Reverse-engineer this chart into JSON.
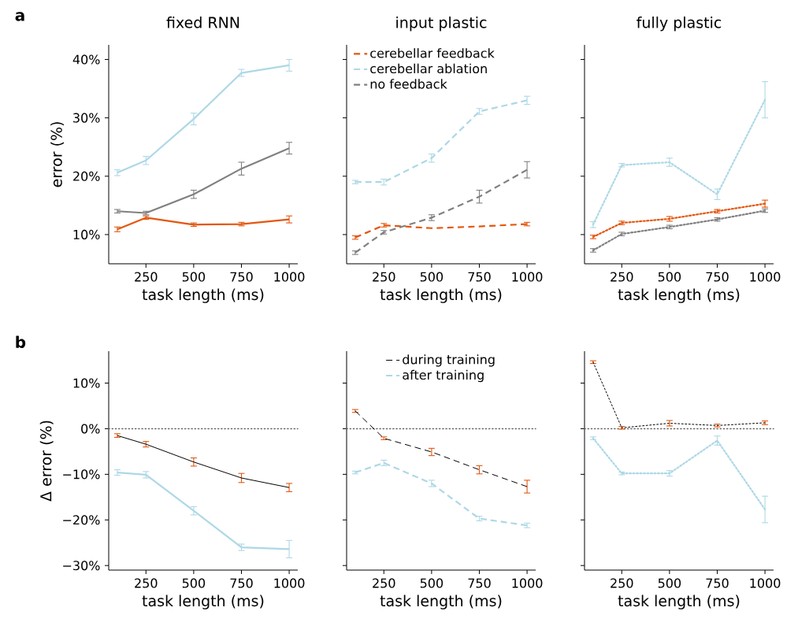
{
  "chart_data": [
    {
      "type": "line",
      "title": "fixed RNN",
      "xlabel": "task length (ms)",
      "ylabel": "error (%)",
      "annotations": [
        "a"
      ],
      "x": [
        100,
        250,
        500,
        750,
        1000
      ],
      "xlim": [
        55,
        1045
      ],
      "xticks": [
        250,
        500,
        750,
        1000
      ],
      "ylim": [
        5,
        42.5
      ],
      "yticks": [
        {
          "value": 10,
          "label": "10%"
        },
        {
          "value": 20,
          "label": "20%"
        },
        {
          "value": 30,
          "label": "30%"
        },
        {
          "value": 40,
          "label": "40%"
        }
      ],
      "line_style": "solid",
      "legend": false,
      "series": [
        {
          "color": "#e4570f",
          "values": [
            10.9,
            12.9,
            11.7,
            11.8,
            12.6
          ],
          "errors": [
            0.4,
            0.3,
            0.3,
            0.3,
            0.6
          ]
        },
        {
          "color": "#add8e6",
          "values": [
            20.6,
            22.7,
            29.8,
            37.7,
            39.0
          ],
          "errors": [
            0.5,
            0.7,
            1.0,
            0.6,
            1.0
          ]
        },
        {
          "color": "#808080",
          "values": [
            14.0,
            13.7,
            16.9,
            21.3,
            24.8
          ],
          "errors": [
            0.3,
            0.3,
            0.7,
            1.1,
            1.0
          ]
        }
      ]
    },
    {
      "type": "line",
      "title": "input plastic",
      "xlabel": "task length (ms)",
      "x": [
        100,
        250,
        500,
        750,
        1000
      ],
      "xlim": [
        55,
        1045
      ],
      "xticks": [
        250,
        500,
        750,
        1000
      ],
      "ylim": [
        5,
        42.5
      ],
      "yticks": [
        {
          "value": 10,
          "label": null
        },
        {
          "value": 20,
          "label": null
        },
        {
          "value": 30,
          "label": null
        },
        {
          "value": 40,
          "label": null
        }
      ],
      "tick_labels": "x",
      "line_style": "dashed",
      "legend": "top left",
      "series": [
        {
          "name": "cerebellar feedback",
          "color": "#e4570f",
          "values": [
            9.5,
            11.6,
            11.1,
            11.4,
            11.8
          ],
          "errors": [
            0.3,
            0.3,
            null,
            null,
            0.3
          ]
        },
        {
          "name": "cerebellar ablation",
          "color": "#add8e6",
          "values": [
            19.0,
            19.0,
            23.1,
            31.1,
            33.0
          ],
          "errors": [
            0.3,
            0.5,
            0.7,
            0.5,
            0.7
          ]
        },
        {
          "name": "no feedback",
          "color": "#808080",
          "values": [
            6.9,
            10.4,
            12.9,
            16.5,
            21.1
          ],
          "errors": [
            0.3,
            0.3,
            0.5,
            1.1,
            1.4
          ]
        }
      ]
    },
    {
      "type": "line",
      "title": "fully plastic",
      "xlabel": "task length (ms)",
      "x": [
        100,
        250,
        500,
        750,
        1000
      ],
      "xlim": [
        55,
        1045
      ],
      "xticks": [
        250,
        500,
        750,
        1000
      ],
      "ylim": [
        5,
        42.5
      ],
      "yticks": [
        {
          "value": 10,
          "label": null
        },
        {
          "value": 20,
          "label": null
        },
        {
          "value": 30,
          "label": null
        },
        {
          "value": 40,
          "label": null
        }
      ],
      "tick_labels": "x",
      "line_style": "dotted",
      "legend": false,
      "series": [
        {
          "color": "#e4570f",
          "values": [
            9.6,
            12.0,
            12.7,
            14.0,
            15.3
          ],
          "errors": [
            0.3,
            0.3,
            0.4,
            0.3,
            0.6
          ]
        },
        {
          "color": "#add8e6",
          "values": [
            11.7,
            21.9,
            22.4,
            16.9,
            33.1
          ],
          "errors": [
            0.5,
            0.3,
            0.7,
            0.9,
            3.1
          ]
        },
        {
          "color": "#808080",
          "values": [
            7.3,
            10.1,
            11.3,
            12.6,
            14.1
          ],
          "errors": [
            0.3,
            0.3,
            0.3,
            0.3,
            0.3
          ]
        }
      ]
    },
    {
      "type": "line",
      "xlabel": "task length (ms)",
      "ylabel": "Δ error (%)",
      "annotations": [
        "b"
      ],
      "x": [
        100,
        250,
        500,
        750,
        1000
      ],
      "xlim": [
        55,
        1045
      ],
      "xticks": [
        250,
        500,
        750,
        1000
      ],
      "ylim": [
        -31,
        17
      ],
      "yticks": [
        {
          "value": -30,
          "label": "−30%"
        },
        {
          "value": -20,
          "label": "−20%"
        },
        {
          "value": -10,
          "label": "−10%"
        },
        {
          "value": 0,
          "label": "0%"
        },
        {
          "value": 10,
          "label": "10%"
        }
      ],
      "line_style": "solid",
      "legend": false,
      "ref_lines": [
        {
          "axis": "y",
          "value": 0,
          "color": "#666666",
          "line_style": "dotted"
        }
      ],
      "series": [
        {
          "color": "#000000",
          "colors": [
            "#e4570f",
            "#e4570f",
            "#e4570f",
            "#e4570f",
            "#e4570f"
          ],
          "values": [
            -1.5,
            -3.4,
            -7.3,
            -10.8,
            -12.9
          ],
          "errors": [
            0.4,
            0.6,
            0.9,
            1.0,
            0.9
          ]
        },
        {
          "color": "#add8e6",
          "values": [
            -9.6,
            -10.1,
            -18.0,
            -26.0,
            -26.4
          ],
          "errors": [
            0.6,
            0.7,
            0.9,
            0.7,
            1.9
          ]
        }
      ]
    },
    {
      "type": "line",
      "xlabel": "task length (ms)",
      "x": [
        100,
        250,
        500,
        750,
        1000
      ],
      "xlim": [
        55,
        1045
      ],
      "xticks": [
        250,
        500,
        750,
        1000
      ],
      "ylim": [
        -31,
        17
      ],
      "yticks": [
        {
          "value": -30,
          "label": null
        },
        {
          "value": -20,
          "label": null
        },
        {
          "value": -10,
          "label": null
        },
        {
          "value": 0,
          "label": null
        },
        {
          "value": 10,
          "label": null
        }
      ],
      "tick_labels": "x",
      "line_style": "dashed",
      "legend": "top",
      "ref_lines": [
        {
          "axis": "y",
          "value": 0,
          "color": "#666666",
          "line_style": "dotted"
        }
      ],
      "series": [
        {
          "name": "during training",
          "color": "#000000",
          "colors": [
            "#e4570f",
            "#e4570f",
            "#e4570f",
            "#e4570f",
            "#e4570f"
          ],
          "values": [
            3.9,
            -2.1,
            -5.1,
            -9.0,
            -12.7
          ],
          "errors": [
            0.3,
            0.3,
            0.8,
            0.9,
            1.4
          ]
        },
        {
          "name": "after training",
          "color": "#add8e6",
          "values": [
            -9.6,
            -7.5,
            -12.0,
            -19.7,
            -21.2
          ],
          "errors": [
            0.3,
            0.6,
            0.7,
            0.5,
            0.5
          ]
        }
      ]
    },
    {
      "type": "line",
      "xlabel": "task length (ms)",
      "x": [
        100,
        250,
        500,
        750,
        1000
      ],
      "xlim": [
        55,
        1045
      ],
      "xticks": [
        250,
        500,
        750,
        1000
      ],
      "ylim": [
        -31,
        17
      ],
      "yticks": [
        {
          "value": -30,
          "label": null
        },
        {
          "value": -20,
          "label": null
        },
        {
          "value": -10,
          "label": null
        },
        {
          "value": 0,
          "label": null
        },
        {
          "value": 10,
          "label": null
        }
      ],
      "tick_labels": "x",
      "line_style": "dotted",
      "legend": false,
      "ref_lines": [
        {
          "axis": "y",
          "value": 0,
          "color": "#666666",
          "line_style": "dotted"
        }
      ],
      "series": [
        {
          "color": "#000000",
          "colors": [
            "#e4570f",
            "#e4570f",
            "#e4570f",
            "#e4570f",
            "#e4570f"
          ],
          "values": [
            14.6,
            0.2,
            1.2,
            0.7,
            1.3
          ],
          "errors": [
            0.3,
            0.3,
            0.6,
            0.3,
            0.4
          ]
        },
        {
          "color": "#add8e6",
          "values": [
            -2.1,
            -9.8,
            -9.8,
            -2.6,
            -17.7
          ],
          "errors": [
            0.3,
            0.3,
            0.6,
            1.0,
            2.9
          ]
        }
      ]
    }
  ]
}
